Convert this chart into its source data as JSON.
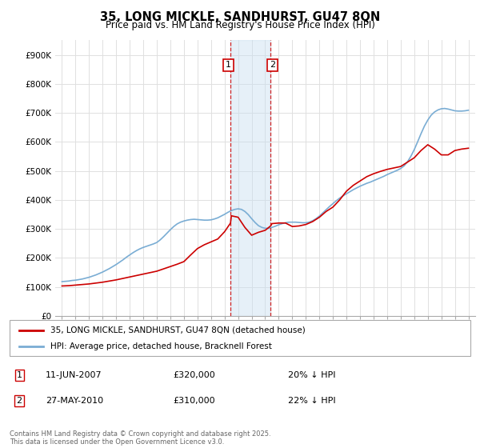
{
  "title": "35, LONG MICKLE, SANDHURST, GU47 8QN",
  "subtitle": "Price paid vs. HM Land Registry's House Price Index (HPI)",
  "ylim": [
    0,
    950000
  ],
  "yticks": [
    0,
    100000,
    200000,
    300000,
    400000,
    500000,
    600000,
    700000,
    800000,
    900000
  ],
  "ytick_labels": [
    "£0",
    "£100K",
    "£200K",
    "£300K",
    "£400K",
    "£500K",
    "£600K",
    "£700K",
    "£800K",
    "£900K"
  ],
  "background_color": "#ffffff",
  "grid_color": "#e0e0e0",
  "line_red_color": "#cc0000",
  "line_blue_color": "#7aadd4",
  "transaction1_date": "11-JUN-2007",
  "transaction1_price": "£320,000",
  "transaction1_hpi": "20% ↓ HPI",
  "transaction1_year": 2007.44,
  "transaction2_date": "27-MAY-2010",
  "transaction2_price": "£310,000",
  "transaction2_hpi": "22% ↓ HPI",
  "transaction2_year": 2010.4,
  "shade_color": "#c8dff0",
  "shade_alpha": 0.45,
  "legend_label_red": "35, LONG MICKLE, SANDHURST, GU47 8QN (detached house)",
  "legend_label_blue": "HPI: Average price, detached house, Bracknell Forest",
  "footer": "Contains HM Land Registry data © Crown copyright and database right 2025.\nThis data is licensed under the Open Government Licence v3.0.",
  "hpi_years": [
    1995.0,
    1995.25,
    1995.5,
    1995.75,
    1996.0,
    1996.25,
    1996.5,
    1996.75,
    1997.0,
    1997.25,
    1997.5,
    1997.75,
    1998.0,
    1998.25,
    1998.5,
    1998.75,
    1999.0,
    1999.25,
    1999.5,
    1999.75,
    2000.0,
    2000.25,
    2000.5,
    2000.75,
    2001.0,
    2001.25,
    2001.5,
    2001.75,
    2002.0,
    2002.25,
    2002.5,
    2002.75,
    2003.0,
    2003.25,
    2003.5,
    2003.75,
    2004.0,
    2004.25,
    2004.5,
    2004.75,
    2005.0,
    2005.25,
    2005.5,
    2005.75,
    2006.0,
    2006.25,
    2006.5,
    2006.75,
    2007.0,
    2007.25,
    2007.5,
    2007.75,
    2008.0,
    2008.25,
    2008.5,
    2008.75,
    2009.0,
    2009.25,
    2009.5,
    2009.75,
    2010.0,
    2010.25,
    2010.5,
    2010.75,
    2011.0,
    2011.25,
    2011.5,
    2011.75,
    2012.0,
    2012.25,
    2012.5,
    2012.75,
    2013.0,
    2013.25,
    2013.5,
    2013.75,
    2014.0,
    2014.25,
    2014.5,
    2014.75,
    2015.0,
    2015.25,
    2015.5,
    2015.75,
    2016.0,
    2016.25,
    2016.5,
    2016.75,
    2017.0,
    2017.25,
    2017.5,
    2017.75,
    2018.0,
    2018.25,
    2018.5,
    2018.75,
    2019.0,
    2019.25,
    2019.5,
    2019.75,
    2020.0,
    2020.25,
    2020.5,
    2020.75,
    2021.0,
    2021.25,
    2021.5,
    2021.75,
    2022.0,
    2022.25,
    2022.5,
    2022.75,
    2023.0,
    2023.25,
    2023.5,
    2023.75,
    2024.0,
    2024.25,
    2024.5,
    2024.75,
    2025.0
  ],
  "hpi_values": [
    118000,
    119000,
    120000,
    122000,
    123000,
    125000,
    127000,
    130000,
    133000,
    137000,
    141000,
    146000,
    151000,
    157000,
    163000,
    170000,
    177000,
    185000,
    193000,
    202000,
    210000,
    218000,
    225000,
    231000,
    236000,
    240000,
    244000,
    248000,
    253000,
    262000,
    273000,
    285000,
    297000,
    308000,
    317000,
    323000,
    327000,
    330000,
    332000,
    333000,
    332000,
    331000,
    330000,
    330000,
    331000,
    334000,
    338000,
    344000,
    350000,
    357000,
    363000,
    367000,
    369000,
    367000,
    360000,
    349000,
    335000,
    322000,
    311000,
    305000,
    302000,
    302000,
    305000,
    309000,
    314000,
    318000,
    321000,
    323000,
    323000,
    323000,
    322000,
    321000,
    321000,
    323000,
    328000,
    335000,
    344000,
    355000,
    366000,
    377000,
    387000,
    397000,
    406000,
    414000,
    421000,
    428000,
    435000,
    441000,
    447000,
    452000,
    457000,
    461000,
    466000,
    471000,
    476000,
    481000,
    487000,
    492000,
    497000,
    502000,
    508000,
    517000,
    531000,
    550000,
    573000,
    600000,
    628000,
    654000,
    675000,
    692000,
    703000,
    710000,
    714000,
    715000,
    713000,
    710000,
    707000,
    706000,
    706000,
    707000,
    709000
  ],
  "red_years": [
    1995.0,
    1995.5,
    1996.0,
    1996.5,
    1997.0,
    1997.5,
    1998.0,
    1998.5,
    1999.0,
    1999.5,
    2000.0,
    2000.5,
    2001.0,
    2001.5,
    2002.0,
    2002.5,
    2003.0,
    2003.5,
    2004.0,
    2004.5,
    2005.0,
    2005.5,
    2006.0,
    2006.5,
    2007.0,
    2007.44,
    2007.5,
    2008.0,
    2008.5,
    2009.0,
    2009.5,
    2010.0,
    2010.4,
    2010.5,
    2011.0,
    2011.5,
    2012.0,
    2012.5,
    2013.0,
    2013.5,
    2014.0,
    2014.5,
    2015.0,
    2015.5,
    2016.0,
    2016.5,
    2017.0,
    2017.5,
    2018.0,
    2018.5,
    2019.0,
    2019.5,
    2020.0,
    2020.5,
    2021.0,
    2021.5,
    2022.0,
    2022.5,
    2023.0,
    2023.5,
    2024.0,
    2024.5,
    2025.0
  ],
  "red_values": [
    103000,
    104000,
    106000,
    108000,
    110000,
    113000,
    116000,
    120000,
    124000,
    129000,
    134000,
    139000,
    144000,
    149000,
    154000,
    162000,
    170000,
    178000,
    187000,
    210000,
    232000,
    245000,
    255000,
    265000,
    290000,
    320000,
    345000,
    340000,
    305000,
    278000,
    288000,
    295000,
    310000,
    318000,
    320000,
    320000,
    308000,
    310000,
    315000,
    325000,
    340000,
    360000,
    375000,
    400000,
    430000,
    450000,
    465000,
    480000,
    490000,
    498000,
    505000,
    510000,
    515000,
    530000,
    545000,
    570000,
    590000,
    575000,
    555000,
    555000,
    570000,
    575000,
    578000
  ]
}
